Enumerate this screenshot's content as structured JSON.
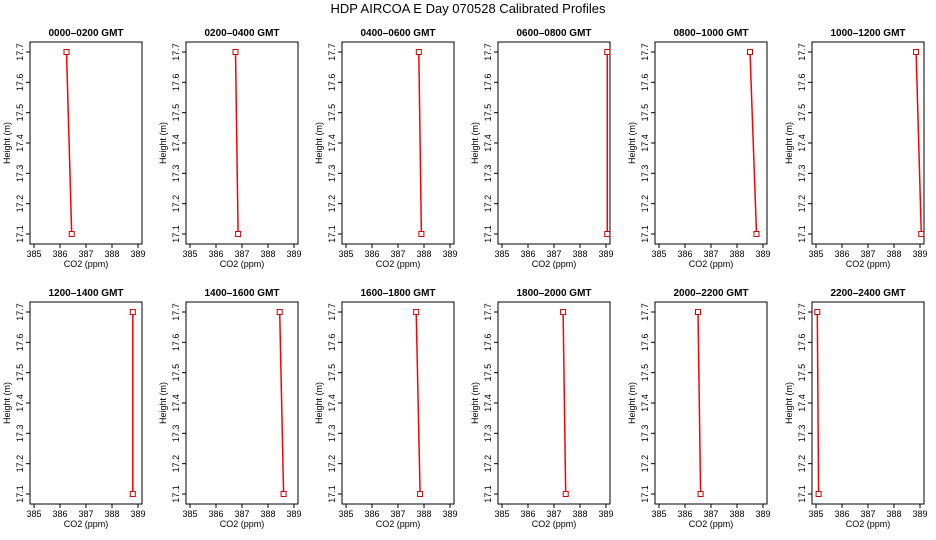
{
  "title": "HDP AIRCOA E  Day 070528  Calibrated Profiles",
  "chart_data": {
    "type": "line",
    "xlabel": "CO2 (ppm)",
    "ylabel": "Height (m)",
    "xlim": [
      385,
      389
    ],
    "ylim": [
      17.1,
      17.7
    ],
    "xticks": [
      385,
      386,
      387,
      388,
      389
    ],
    "yticks": [
      17.1,
      17.2,
      17.3,
      17.4,
      17.5,
      17.6,
      17.7
    ],
    "colors": {
      "line": "#ff0000",
      "marker": "#cc0000"
    },
    "panels": [
      {
        "title": "0000–0200 GMT",
        "x": [
          386.45,
          386.25
        ],
        "y": [
          17.1,
          17.7
        ]
      },
      {
        "title": "0200–0400 GMT",
        "x": [
          386.85,
          386.75
        ],
        "y": [
          17.1,
          17.7
        ]
      },
      {
        "title": "0400–0600 GMT",
        "x": [
          387.9,
          387.8
        ],
        "y": [
          17.1,
          17.7
        ]
      },
      {
        "title": "0600–0800 GMT",
        "x": [
          389.05,
          389.05
        ],
        "y": [
          17.1,
          17.7
        ]
      },
      {
        "title": "0800–1000 GMT",
        "x": [
          388.75,
          388.5
        ],
        "y": [
          17.1,
          17.7
        ]
      },
      {
        "title": "1000–1200 GMT",
        "x": [
          389.05,
          388.85
        ],
        "y": [
          17.1,
          17.7
        ]
      },
      {
        "title": "1200–1400 GMT",
        "x": [
          388.8,
          388.8
        ],
        "y": [
          17.1,
          17.7
        ]
      },
      {
        "title": "1400–1600 GMT",
        "x": [
          388.6,
          388.45
        ],
        "y": [
          17.1,
          17.7
        ]
      },
      {
        "title": "1600–1800 GMT",
        "x": [
          387.85,
          387.7
        ],
        "y": [
          17.1,
          17.7
        ]
      },
      {
        "title": "1800–2000 GMT",
        "x": [
          387.45,
          387.35
        ],
        "y": [
          17.1,
          17.7
        ]
      },
      {
        "title": "2000–2200 GMT",
        "x": [
          386.6,
          386.5
        ],
        "y": [
          17.1,
          17.7
        ]
      },
      {
        "title": "2200–2400 GMT",
        "x": [
          385.1,
          385.05
        ],
        "y": [
          17.1,
          17.7
        ]
      }
    ]
  }
}
